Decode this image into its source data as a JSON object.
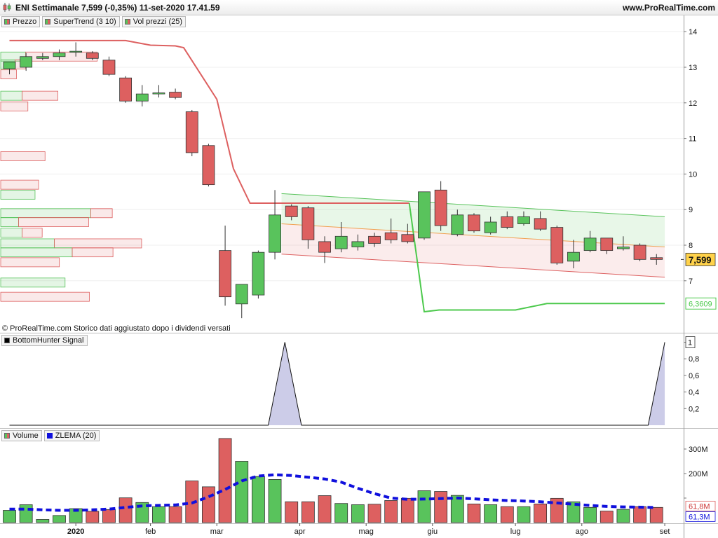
{
  "header": {
    "title": "ENI Settimanale 7,599 (-0,35%) 11-set-2020 17.41.59",
    "site": "www.ProRealTime.com"
  },
  "legend_price": [
    {
      "label": "Prezzo"
    },
    {
      "label": "SuperTrend (3 10)"
    },
    {
      "label": "Vol prezzi (25)"
    }
  ],
  "legend_signal": [
    {
      "label": "BottomHunter Signal"
    }
  ],
  "legend_volume": [
    {
      "label": "Volume"
    },
    {
      "label": "ZLEMA (20)"
    }
  ],
  "copyright": "© ProRealTime.com  Storico dati aggiustato dopo i dividendi versati",
  "colors": {
    "up": "#59c35c",
    "down": "#dd6060",
    "supertrend_bear": "#dd6060",
    "supertrend_bull": "#4cc94c",
    "zlema": "#1010dd",
    "last_price_bg": "#ffd24a",
    "support_label": "#4cc94c"
  },
  "chart_data": [
    {
      "type": "candlestick",
      "name": "Prezzo",
      "x_ticks": [
        "2020",
        "feb",
        "mar",
        "apr",
        "mag",
        "giu",
        "lug",
        "ago",
        "set"
      ],
      "x_tick_index": [
        4,
        8.5,
        12.5,
        17.5,
        21.5,
        25.5,
        30.5,
        34.5,
        39.5
      ],
      "y_ticks": [
        7,
        8,
        9,
        10,
        11,
        12,
        13,
        14
      ],
      "ylim": [
        5.6,
        14.5
      ],
      "last_price": "7,599",
      "supertrend_value": "6,3609",
      "candles": [
        {
          "o": 12.96,
          "h": 13.1,
          "l": 12.8,
          "c": 13.15
        },
        {
          "o": 13.0,
          "h": 13.4,
          "l": 12.9,
          "c": 13.3
        },
        {
          "o": 13.25,
          "h": 13.4,
          "l": 13.2,
          "c": 13.3
        },
        {
          "o": 13.3,
          "h": 13.5,
          "l": 13.2,
          "c": 13.4
        },
        {
          "o": 13.45,
          "h": 13.7,
          "l": 13.3,
          "c": 13.45
        },
        {
          "o": 13.4,
          "h": 13.45,
          "l": 13.2,
          "c": 13.25
        },
        {
          "o": 13.2,
          "h": 13.3,
          "l": 12.75,
          "c": 12.8
        },
        {
          "o": 12.7,
          "h": 12.75,
          "l": 12.0,
          "c": 12.05
        },
        {
          "o": 12.05,
          "h": 12.5,
          "l": 11.9,
          "c": 12.25
        },
        {
          "o": 12.25,
          "h": 12.5,
          "l": 12.15,
          "c": 12.28
        },
        {
          "o": 12.3,
          "h": 12.4,
          "l": 12.1,
          "c": 12.15
        },
        {
          "o": 11.75,
          "h": 11.8,
          "l": 10.5,
          "c": 10.6
        },
        {
          "o": 10.8,
          "h": 10.85,
          "l": 9.65,
          "c": 9.7
        },
        {
          "o": 7.85,
          "h": 8.55,
          "l": 6.3,
          "c": 6.55
        },
        {
          "o": 6.35,
          "h": 6.9,
          "l": 5.95,
          "c": 6.9
        },
        {
          "o": 6.6,
          "h": 7.85,
          "l": 6.5,
          "c": 7.8
        },
        {
          "o": 7.8,
          "h": 9.55,
          "l": 7.6,
          "c": 8.85
        },
        {
          "o": 9.1,
          "h": 9.15,
          "l": 8.7,
          "c": 8.8
        },
        {
          "o": 9.05,
          "h": 9.1,
          "l": 7.9,
          "c": 8.15
        },
        {
          "o": 8.1,
          "h": 8.25,
          "l": 7.5,
          "c": 7.8
        },
        {
          "o": 7.9,
          "h": 8.65,
          "l": 7.8,
          "c": 8.25
        },
        {
          "o": 7.95,
          "h": 8.3,
          "l": 7.85,
          "c": 8.1
        },
        {
          "o": 8.25,
          "h": 8.35,
          "l": 7.95,
          "c": 8.05
        },
        {
          "o": 8.35,
          "h": 8.75,
          "l": 8.05,
          "c": 8.15
        },
        {
          "o": 8.3,
          "h": 8.6,
          "l": 8.05,
          "c": 8.1
        },
        {
          "o": 8.2,
          "h": 9.5,
          "l": 8.15,
          "c": 9.5
        },
        {
          "o": 9.55,
          "h": 9.8,
          "l": 8.4,
          "c": 8.55
        },
        {
          "o": 8.3,
          "h": 9.0,
          "l": 8.25,
          "c": 8.85
        },
        {
          "o": 8.85,
          "h": 8.9,
          "l": 8.35,
          "c": 8.4
        },
        {
          "o": 8.35,
          "h": 8.8,
          "l": 8.3,
          "c": 8.65
        },
        {
          "o": 8.8,
          "h": 8.95,
          "l": 8.45,
          "c": 8.5
        },
        {
          "o": 8.6,
          "h": 8.95,
          "l": 8.55,
          "c": 8.8
        },
        {
          "o": 8.75,
          "h": 8.95,
          "l": 8.4,
          "c": 8.45
        },
        {
          "o": 8.5,
          "h": 8.55,
          "l": 7.45,
          "c": 7.5
        },
        {
          "o": 7.55,
          "h": 8.15,
          "l": 7.35,
          "c": 7.8
        },
        {
          "o": 7.85,
          "h": 8.4,
          "l": 7.8,
          "c": 8.2
        },
        {
          "o": 8.2,
          "h": 8.2,
          "l": 7.75,
          "c": 7.85
        },
        {
          "o": 7.9,
          "h": 8.25,
          "l": 7.85,
          "c": 7.95
        },
        {
          "o": 8.0,
          "h": 8.05,
          "l": 7.55,
          "c": 7.6
        },
        {
          "o": 7.65,
          "h": 7.75,
          "l": 7.45,
          "c": 7.6
        }
      ],
      "supertrend": [
        {
          "x": 0,
          "y": 13.75
        },
        {
          "x": 7,
          "y": 13.75
        },
        {
          "x": 8.5,
          "y": 13.62
        },
        {
          "x": 10,
          "y": 13.6
        },
        {
          "x": 10.5,
          "y": 13.55
        },
        {
          "x": 12.5,
          "y": 12.1
        },
        {
          "x": 13.5,
          "y": 10.15
        },
        {
          "x": 14.5,
          "y": 9.18
        },
        {
          "x": 24.1,
          "y": 9.18
        },
        {
          "x": 25,
          "y": 6.13
        },
        {
          "x": 25.9,
          "y": 6.18
        },
        {
          "x": 30.5,
          "y": 6.18
        },
        {
          "x": 32.4,
          "y": 6.36
        },
        {
          "x": 39.5,
          "y": 6.36
        }
      ],
      "supertrend_switch_index": 24.1,
      "channel": {
        "x_start": 16.4,
        "x_end": 39.5,
        "upper": [
          9.45,
          8.8
        ],
        "mid": [
          8.6,
          7.95
        ],
        "lower": [
          7.75,
          7.1
        ]
      },
      "volume_by_price": [
        {
          "price": 13.3,
          "up": 35,
          "down": 100
        },
        {
          "price": 13.08,
          "up": 20,
          "down": 15
        },
        {
          "price": 12.8,
          "up": 0,
          "down": 22
        },
        {
          "price": 12.2,
          "up": 30,
          "down": 50
        },
        {
          "price": 11.9,
          "up": 0,
          "down": 38
        },
        {
          "price": 10.5,
          "up": 0,
          "down": 62
        },
        {
          "price": 9.7,
          "up": 0,
          "down": 53
        },
        {
          "price": 9.42,
          "up": 48,
          "down": 0
        },
        {
          "price": 8.9,
          "up": 126,
          "down": 30
        },
        {
          "price": 8.65,
          "up": 25,
          "down": 98
        },
        {
          "price": 8.35,
          "up": 30,
          "down": 28
        },
        {
          "price": 8.05,
          "up": 75,
          "down": 122
        },
        {
          "price": 7.8,
          "up": 100,
          "down": 57
        },
        {
          "price": 7.52,
          "up": 0,
          "down": 82
        },
        {
          "price": 6.95,
          "up": 90,
          "down": 0
        },
        {
          "price": 6.55,
          "up": 0,
          "down": 124
        }
      ]
    },
    {
      "type": "line",
      "name": "BottomHunter Signal",
      "y_ticks": [
        0.2,
        0.4,
        0.6,
        0.8,
        1
      ],
      "ylim": [
        0,
        1
      ],
      "y_tick_labels": [
        "0,2",
        "0,4",
        "0,6",
        "0,8",
        "1"
      ],
      "points": [
        {
          "x": 0,
          "y": 0
        },
        {
          "x": 15.6,
          "y": 0
        },
        {
          "x": 16.6,
          "y": 1
        },
        {
          "x": 17.6,
          "y": 0
        },
        {
          "x": 38.5,
          "y": 0
        },
        {
          "x": 39.5,
          "y": 1
        }
      ]
    },
    {
      "type": "bar",
      "name": "Volume",
      "y_ticks": [
        100,
        200,
        300
      ],
      "y_tick_labels": [
        "",
        "200M",
        "300M"
      ],
      "ylim": [
        0,
        350
      ],
      "unit": "M",
      "volume_label": "61,8M",
      "zlema_label": "61,3M",
      "values": [
        50,
        73,
        13,
        29,
        57,
        46,
        53,
        101,
        82,
        65,
        65,
        170,
        146,
        343,
        250,
        188,
        176,
        85,
        85,
        110,
        78,
        73,
        75,
        90,
        99,
        130,
        127,
        111,
        76,
        73,
        65,
        65,
        76,
        99,
        85,
        62,
        47,
        54,
        65,
        62
      ],
      "zlema": [
        55,
        55,
        52,
        50,
        50,
        52,
        55,
        62,
        68,
        70,
        72,
        80,
        105,
        135,
        170,
        190,
        195,
        192,
        185,
        178,
        165,
        140,
        118,
        100,
        95,
        96,
        98,
        100,
        97,
        93,
        90,
        88,
        85,
        80,
        75,
        70,
        66,
        64,
        63,
        61.3
      ]
    }
  ]
}
